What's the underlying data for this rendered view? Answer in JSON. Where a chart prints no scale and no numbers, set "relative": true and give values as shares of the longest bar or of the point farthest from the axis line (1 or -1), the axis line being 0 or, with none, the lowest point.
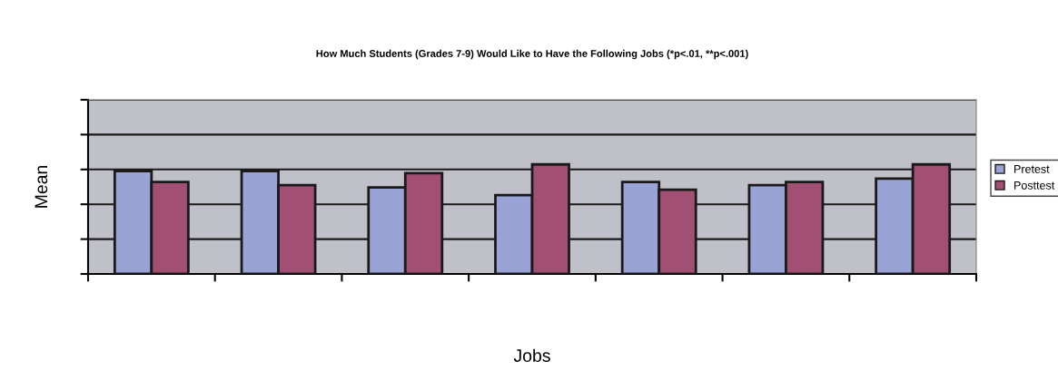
{
  "chart_data": {
    "type": "bar",
    "title": "How Much Students (Grades 7-9) Would Like to Have the Following Jobs (*p<.01, **p<.001)",
    "xlabel": "Jobs",
    "ylabel": "Mean",
    "relative": true,
    "categories": [
      null,
      null,
      null,
      null,
      null,
      null,
      null
    ],
    "series": [
      {
        "name": "Pretest",
        "color": "#99a3d6",
        "values": [
          0.94,
          0.94,
          0.79,
          0.72,
          0.84,
          0.81,
          0.87
        ]
      },
      {
        "name": "Posttest",
        "color": "#a14f72",
        "values": [
          0.84,
          0.81,
          0.92,
          1.0,
          0.77,
          0.84,
          1.0
        ]
      }
    ],
    "grid": "y",
    "legend": "right"
  }
}
